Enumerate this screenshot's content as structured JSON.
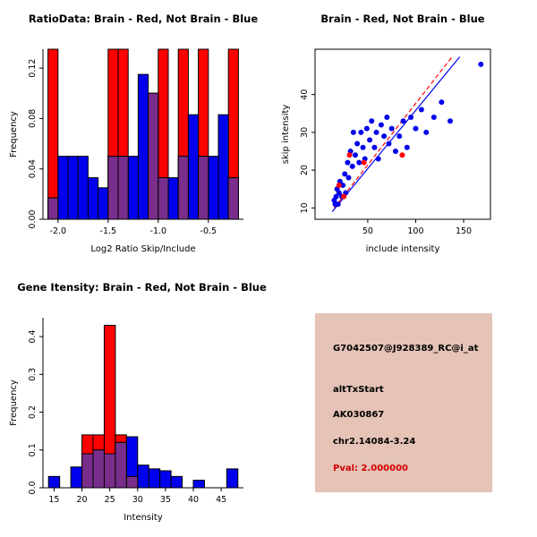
{
  "colors": {
    "brain_red": "#FF0000",
    "not_brain_blue": "#0000EE",
    "overlap_purple": "#7A2E8B",
    "info_box_bg": "#E5C3B6",
    "pval_red": "#D40000",
    "axis_black": "#000000"
  },
  "info_box": {
    "probe_id": "G7042507@J928389_RC@i_at",
    "event_type": "altTxStart",
    "accession": "AK030867",
    "location": "chr2.14084-3.24",
    "pval_label": "Pval: 2.000000"
  },
  "chart_data": [
    {
      "id": "hist-ratio",
      "type": "bar",
      "title": "RatioData: Brain - Red, Not Brain - Blue",
      "xlabel": "Log2 Ratio Skip/Include",
      "ylabel": "Frequency",
      "xlim": [
        -2.15,
        -0.15
      ],
      "ylim": [
        0,
        0.135
      ],
      "xticks": [
        -2.0,
        -1.5,
        -1.0,
        -0.5
      ],
      "xtick_labels": [
        "-2.0",
        "-1.5",
        "-1.0",
        "-0.5"
      ],
      "yticks": [
        0,
        0.04,
        0.08,
        0.12
      ],
      "ytick_labels": [
        "0.00",
        "0.04",
        "0.08",
        "0.12"
      ],
      "bins_start": -2.1,
      "bin_width": 0.1,
      "series": [
        {
          "name": "Brain",
          "color_key": "brain_red",
          "values": [
            0.14,
            0,
            0,
            0,
            0,
            0,
            0.14,
            0.14,
            0,
            0,
            0.1,
            0.14,
            0,
            0.14,
            0,
            0.14,
            0,
            0,
            0.14
          ]
        },
        {
          "name": "Not Brain",
          "color_key": "not_brain_blue",
          "values": [
            0.017,
            0.05,
            0.05,
            0.05,
            0.033,
            0.025,
            0.05,
            0.05,
            0.05,
            0.115,
            0.1,
            0.033,
            0.033,
            0.05,
            0.083,
            0.05,
            0.05,
            0.083,
            0.033
          ]
        }
      ],
      "legend": "grid off, frequencies clipped at top of axis"
    },
    {
      "id": "scatter",
      "type": "scatter",
      "title": "Brain - Red, Not Brain - Blue",
      "xlabel": "include intensity",
      "ylabel": "skip intensity",
      "xlim": [
        -5,
        178
      ],
      "ylim": [
        7,
        52
      ],
      "xticks": [
        50,
        100,
        150
      ],
      "xtick_labels": [
        "50",
        "100",
        "150"
      ],
      "yticks": [
        10,
        20,
        30,
        40
      ],
      "ytick_labels": [
        "10",
        "20",
        "30",
        "40"
      ],
      "series": [
        {
          "name": "Not Brain",
          "color_key": "not_brain_blue",
          "points": [
            [
              15,
              12
            ],
            [
              16,
              11
            ],
            [
              17,
              13
            ],
            [
              18,
              15
            ],
            [
              19,
              11
            ],
            [
              20,
              14
            ],
            [
              21,
              17
            ],
            [
              23,
              13
            ],
            [
              24,
              16
            ],
            [
              26,
              19
            ],
            [
              27,
              14
            ],
            [
              29,
              22
            ],
            [
              30,
              18
            ],
            [
              32,
              25
            ],
            [
              34,
              21
            ],
            [
              35,
              30
            ],
            [
              37,
              24
            ],
            [
              39,
              27
            ],
            [
              41,
              22
            ],
            [
              43,
              30
            ],
            [
              45,
              26
            ],
            [
              47,
              23
            ],
            [
              49,
              31
            ],
            [
              52,
              28
            ],
            [
              54,
              33
            ],
            [
              57,
              26
            ],
            [
              59,
              30
            ],
            [
              61,
              23
            ],
            [
              64,
              32
            ],
            [
              67,
              29
            ],
            [
              70,
              34
            ],
            [
              72,
              27
            ],
            [
              75,
              31
            ],
            [
              79,
              25
            ],
            [
              83,
              29
            ],
            [
              87,
              33
            ],
            [
              91,
              26
            ],
            [
              95,
              34
            ],
            [
              100,
              31
            ],
            [
              106,
              36
            ],
            [
              111,
              30
            ],
            [
              119,
              34
            ],
            [
              127,
              38
            ],
            [
              136,
              33
            ],
            [
              168,
              48
            ]
          ]
        },
        {
          "name": "Brain",
          "color_key": "brain_red",
          "points": [
            [
              20,
              16
            ],
            [
              25,
              13
            ],
            [
              31,
              24
            ],
            [
              46,
              22
            ],
            [
              86,
              24
            ]
          ]
        }
      ],
      "fit_lines": [
        {
          "name": "brain-fit",
          "color_key": "brain_red",
          "dashed": true,
          "x1": 15,
          "y1": 10,
          "x2": 138,
          "y2": 50
        },
        {
          "name": "not-brain-fit",
          "color_key": "not_brain_blue",
          "dashed": false,
          "x1": 13,
          "y1": 9,
          "x2": 146,
          "y2": 50
        }
      ]
    },
    {
      "id": "hist-gene",
      "type": "bar",
      "title": "Gene Itensity: Brain - Red, Not Brain - Blue",
      "xlabel": "Intensity",
      "ylabel": "Frequency",
      "xlim": [
        13,
        49
      ],
      "ylim": [
        0,
        0.45
      ],
      "xticks": [
        15,
        20,
        25,
        30,
        35,
        40,
        45
      ],
      "xtick_labels": [
        "15",
        "20",
        "25",
        "30",
        "35",
        "40",
        "45"
      ],
      "yticks": [
        0,
        0.1,
        0.2,
        0.3,
        0.4
      ],
      "ytick_labels": [
        "0.0",
        "0.1",
        "0.2",
        "0.3",
        "0.4"
      ],
      "bins_start": 14,
      "bin_width": 2,
      "series": [
        {
          "name": "Brain",
          "color_key": "brain_red",
          "values": [
            0,
            0,
            0,
            0.14,
            0.14,
            0.43,
            0.14,
            0.03,
            0,
            0,
            0,
            0,
            0,
            0,
            0,
            0,
            0
          ]
        },
        {
          "name": "Not Brain",
          "color_key": "not_brain_blue",
          "values": [
            0.03,
            0,
            0.055,
            0.09,
            0.1,
            0.09,
            0.12,
            0.135,
            0.06,
            0.05,
            0.045,
            0.03,
            0,
            0.02,
            0,
            0,
            0.05
          ]
        }
      ],
      "legend": "grid off"
    }
  ]
}
